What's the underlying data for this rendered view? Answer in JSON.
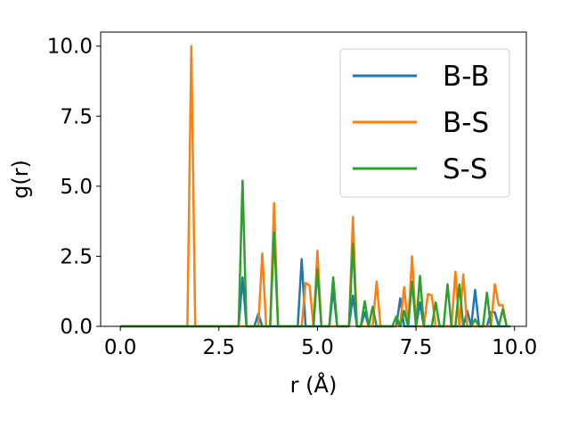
{
  "chart_data": {
    "type": "line",
    "title": "",
    "xlabel": "r (Å)",
    "ylabel": "g(r)",
    "xlim": [
      -0.5,
      10.3
    ],
    "ylim": [
      0,
      10.5
    ],
    "xticks": [
      0.0,
      2.5,
      5.0,
      7.5,
      10.0
    ],
    "xtick_labels": [
      "0.0",
      "2.5",
      "5.0",
      "7.5",
      "10.0"
    ],
    "yticks": [
      0.0,
      2.5,
      5.0,
      7.5,
      10.0
    ],
    "ytick_labels": [
      "0.0",
      "2.5",
      "5.0",
      "7.5",
      "10.0"
    ],
    "grid": false,
    "legend_position": "top-right",
    "series": [
      {
        "name": "B-B",
        "color": "#1f77b4",
        "points": [
          [
            0,
            0
          ],
          [
            2.9,
            0
          ],
          [
            3.0,
            0
          ],
          [
            3.1,
            1.75
          ],
          [
            3.2,
            0
          ],
          [
            3.4,
            0
          ],
          [
            3.5,
            0.45
          ],
          [
            3.6,
            0
          ],
          [
            4.5,
            0
          ],
          [
            4.6,
            2.4
          ],
          [
            4.7,
            0
          ],
          [
            5.3,
            0
          ],
          [
            5.4,
            1.3
          ],
          [
            5.5,
            0
          ],
          [
            5.8,
            0
          ],
          [
            5.9,
            1.1
          ],
          [
            6.0,
            0
          ],
          [
            6.1,
            0
          ],
          [
            6.2,
            0.5
          ],
          [
            6.3,
            0
          ],
          [
            7.0,
            0
          ],
          [
            7.1,
            1.0
          ],
          [
            7.2,
            0
          ],
          [
            7.5,
            0
          ],
          [
            7.6,
            0.85
          ],
          [
            7.7,
            0
          ],
          [
            8.7,
            0
          ],
          [
            8.8,
            0.55
          ],
          [
            8.9,
            0
          ],
          [
            9.0,
            1.3
          ],
          [
            9.1,
            0
          ],
          [
            9.3,
            0
          ],
          [
            9.4,
            0.5
          ],
          [
            9.5,
            0.5
          ],
          [
            9.6,
            0
          ],
          [
            9.8,
            0
          ]
        ]
      },
      {
        "name": "B-S",
        "color": "#ff7f0e",
        "points": [
          [
            0,
            0
          ],
          [
            1.7,
            0
          ],
          [
            1.8,
            10.0
          ],
          [
            1.9,
            0
          ],
          [
            3.5,
            0
          ],
          [
            3.6,
            2.6
          ],
          [
            3.7,
            0
          ],
          [
            3.8,
            0
          ],
          [
            3.9,
            4.4
          ],
          [
            4.0,
            0
          ],
          [
            4.6,
            0
          ],
          [
            4.7,
            1.55
          ],
          [
            4.8,
            1.45
          ],
          [
            4.9,
            0
          ],
          [
            5.0,
            2.7
          ],
          [
            5.1,
            0
          ],
          [
            5.4,
            0
          ],
          [
            5.5,
            0
          ],
          [
            5.8,
            0
          ],
          [
            5.9,
            3.9
          ],
          [
            6.0,
            0
          ],
          [
            6.4,
            0
          ],
          [
            6.5,
            1.6
          ],
          [
            6.6,
            0
          ],
          [
            7.0,
            0
          ],
          [
            7.1,
            0.1
          ],
          [
            7.2,
            1.4
          ],
          [
            7.3,
            0
          ],
          [
            7.4,
            2.5
          ],
          [
            7.5,
            0
          ],
          [
            7.7,
            0
          ],
          [
            7.8,
            1.15
          ],
          [
            7.9,
            1.1
          ],
          [
            8.0,
            0
          ],
          [
            8.4,
            0
          ],
          [
            8.5,
            1.95
          ],
          [
            8.6,
            0
          ],
          [
            8.7,
            1.85
          ],
          [
            8.8,
            0
          ],
          [
            9.4,
            0
          ],
          [
            9.5,
            1.5
          ],
          [
            9.6,
            0.75
          ],
          [
            9.7,
            0.75
          ],
          [
            9.8,
            0
          ]
        ]
      },
      {
        "name": "S-S",
        "color": "#2ca02c",
        "points": [
          [
            0,
            0
          ],
          [
            3.0,
            0
          ],
          [
            3.1,
            5.2
          ],
          [
            3.2,
            0
          ],
          [
            3.8,
            0
          ],
          [
            3.9,
            3.35
          ],
          [
            4.0,
            0
          ],
          [
            4.9,
            0
          ],
          [
            5.0,
            2.05
          ],
          [
            5.1,
            0
          ],
          [
            5.3,
            0
          ],
          [
            5.4,
            1.75
          ],
          [
            5.5,
            0
          ],
          [
            5.8,
            0
          ],
          [
            5.9,
            2.95
          ],
          [
            6.0,
            0
          ],
          [
            6.1,
            0
          ],
          [
            6.2,
            0.9
          ],
          [
            6.3,
            0
          ],
          [
            6.4,
            0.7
          ],
          [
            6.5,
            0
          ],
          [
            6.9,
            0
          ],
          [
            7.0,
            0.35
          ],
          [
            7.1,
            0
          ],
          [
            7.2,
            0.55
          ],
          [
            7.3,
            0
          ],
          [
            7.4,
            1.6
          ],
          [
            7.5,
            0
          ],
          [
            7.6,
            1.8
          ],
          [
            7.7,
            0
          ],
          [
            7.9,
            0
          ],
          [
            8.0,
            0.85
          ],
          [
            8.1,
            0
          ],
          [
            8.2,
            0
          ],
          [
            8.3,
            1.5
          ],
          [
            8.4,
            0
          ],
          [
            8.5,
            0
          ],
          [
            8.6,
            1.5
          ],
          [
            8.7,
            0
          ],
          [
            8.9,
            0
          ],
          [
            9.0,
            0.25
          ],
          [
            9.1,
            0
          ],
          [
            9.2,
            0
          ],
          [
            9.3,
            1.2
          ],
          [
            9.4,
            0
          ],
          [
            9.6,
            0
          ],
          [
            9.7,
            0.6
          ],
          [
            9.8,
            0
          ],
          [
            9.9,
            0
          ]
        ]
      }
    ]
  }
}
